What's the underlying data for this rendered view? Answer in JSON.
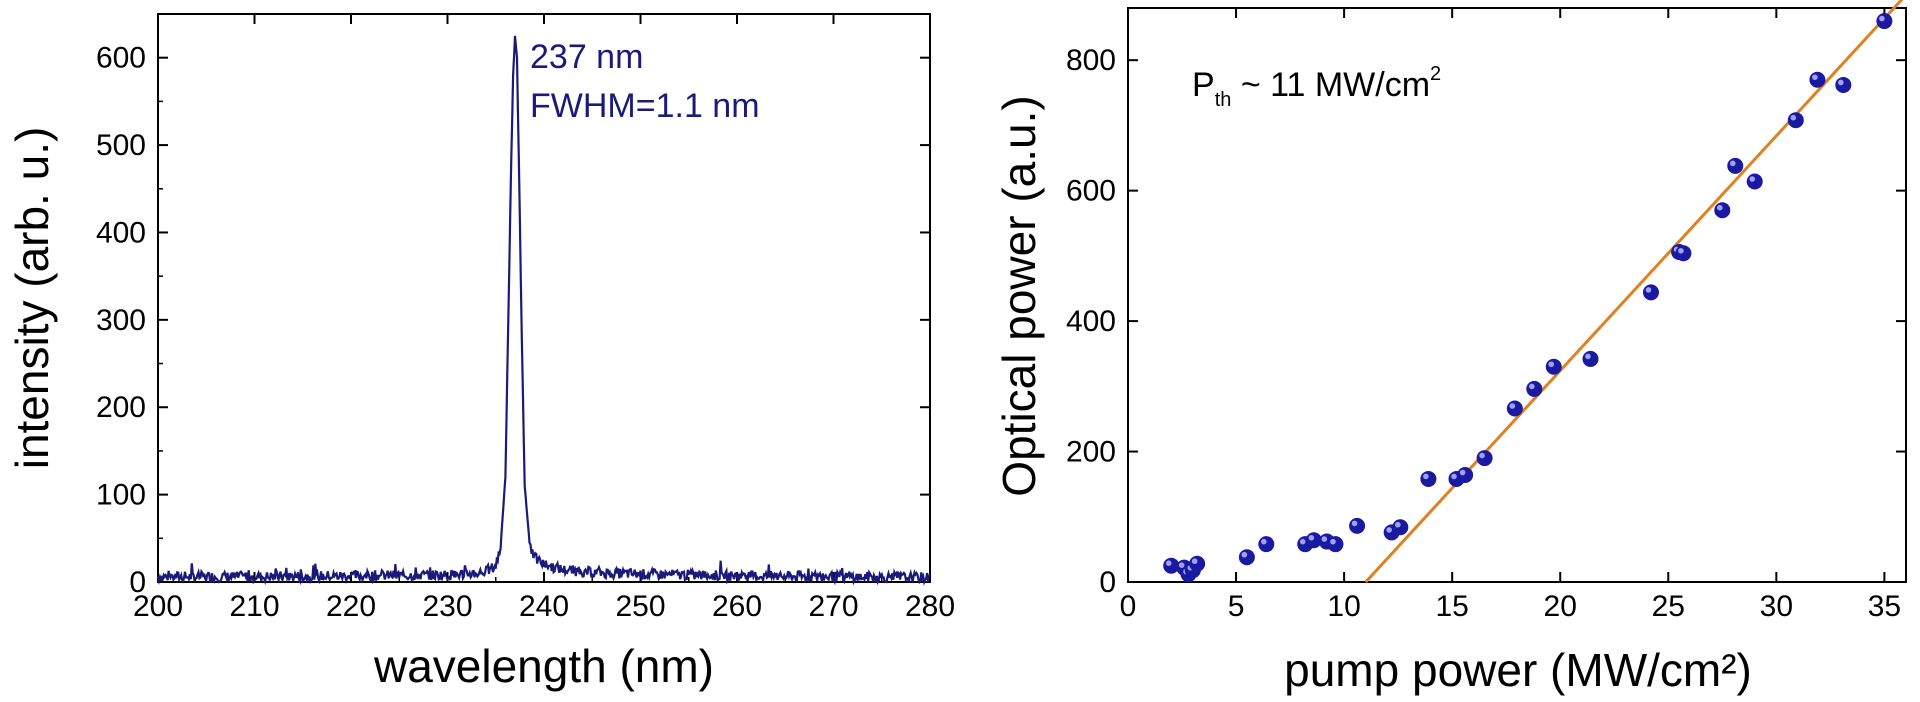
{
  "chart_data": [
    {
      "type": "line",
      "xlabel": "wavelength (nm)",
      "ylabel": "intensity (arb. u.)",
      "xlim": [
        200,
        280
      ],
      "ylim": [
        0,
        650
      ],
      "xticks": [
        "200",
        "210",
        "220",
        "230",
        "240",
        "250",
        "260",
        "270",
        "280"
      ],
      "yticks": [
        "0",
        "100",
        "200",
        "300",
        "400",
        "500",
        "600"
      ],
      "line_color": "#1a1a7a",
      "annotations": [
        "237 nm",
        "FWHM=1.1 nm"
      ],
      "annotation_color": "#1a1a7a",
      "series": [
        {
          "peak_x": 237.0,
          "peak_y": 625,
          "fwhm": 1.1,
          "background": 6,
          "x": [
            200,
            210,
            220,
            230,
            233,
            234,
            235,
            235.5,
            236,
            236.3,
            236.6,
            236.8,
            237.0,
            237.2,
            237.4,
            237.7,
            238.0,
            238.5,
            239,
            240,
            242,
            245,
            250,
            260,
            270,
            280
          ],
          "y": [
            6,
            6,
            7,
            8,
            10,
            12,
            18,
            40,
            120,
            300,
            480,
            580,
            625,
            600,
            480,
            280,
            110,
            45,
            28,
            20,
            14,
            11,
            9,
            7,
            6,
            5
          ]
        }
      ]
    },
    {
      "type": "scatter",
      "xlabel": "pump power (MW/cm²)",
      "ylabel": "Optical power (a.u.)",
      "xlim": [
        0,
        36
      ],
      "ylim": [
        0,
        880
      ],
      "xticks": [
        "0",
        "5",
        "10",
        "15",
        "20",
        "25",
        "30",
        "35"
      ],
      "yticks": [
        "0",
        "200",
        "400",
        "600",
        "800"
      ],
      "annotation": {
        "main": "P",
        "sub": "th",
        "rest": " ~ 11 MW/cm",
        "sup": "2"
      },
      "point_color": "#1a1aa0",
      "fit_color": "#e08020",
      "fit": {
        "x_intercept": 11.0,
        "slope": 36.0
      },
      "points": {
        "x": [
          2.0,
          2.6,
          2.8,
          3.0,
          3.2,
          5.5,
          6.4,
          8.2,
          8.6,
          9.2,
          9.6,
          10.6,
          12.2,
          12.6,
          13.9,
          15.2,
          15.6,
          16.5,
          17.9,
          18.8,
          19.7,
          21.4,
          24.2,
          25.5,
          25.7,
          27.5,
          28.1,
          29.0,
          30.9,
          31.9,
          33.1,
          35.0
        ],
        "y": [
          25,
          22,
          12,
          18,
          28,
          38,
          58,
          58,
          64,
          62,
          58,
          86,
          76,
          84,
          158,
          158,
          164,
          190,
          266,
          296,
          330,
          342,
          444,
          506,
          504,
          570,
          638,
          614,
          708,
          770,
          762,
          860
        ]
      }
    }
  ]
}
